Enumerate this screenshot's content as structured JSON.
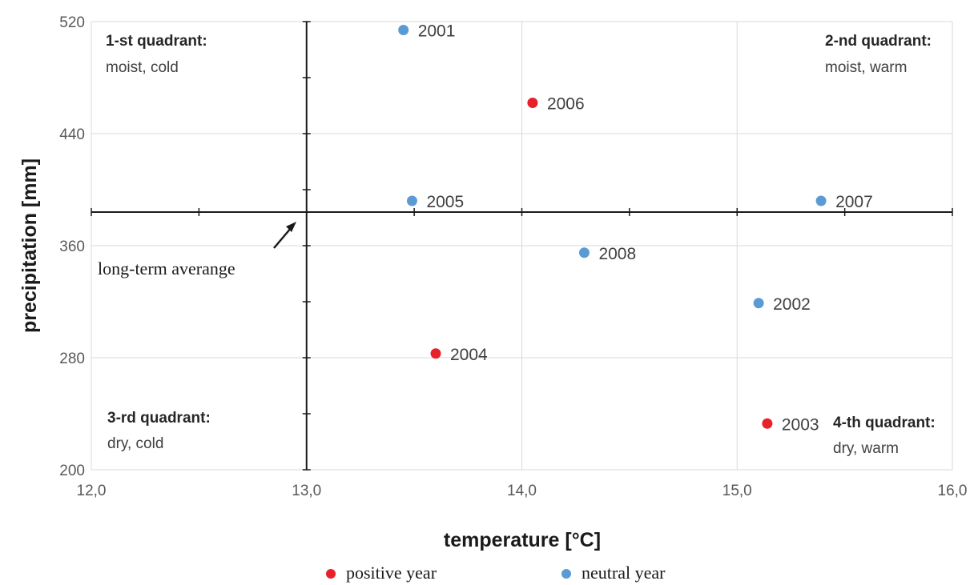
{
  "chart_data": {
    "type": "scatter",
    "xlabel": "temperature [°C]",
    "ylabel": "precipitation [mm]",
    "xlim": [
      12.0,
      16.0
    ],
    "ylim": [
      200,
      520
    ],
    "x_ticks": [
      "12,0",
      "13,0",
      "14,0",
      "15,0",
      "16,0"
    ],
    "y_ticks": [
      "200",
      "280",
      "360",
      "440",
      "520"
    ],
    "grid": true,
    "legend_placement": "bottom",
    "average": {
      "x": 13.0,
      "y": 384,
      "label": "long-term averange"
    },
    "series": [
      {
        "name": "positive year",
        "color": "#e8202a",
        "points": [
          {
            "x": 14.05,
            "y": 462,
            "label": "2006"
          },
          {
            "x": 13.6,
            "y": 283,
            "label": "2004"
          },
          {
            "x": 15.14,
            "y": 233,
            "label": "2003"
          }
        ]
      },
      {
        "name": "neutral year",
        "color": "#5b9bd5",
        "points": [
          {
            "x": 13.45,
            "y": 514,
            "label": "2001"
          },
          {
            "x": 13.49,
            "y": 392,
            "label": "2005"
          },
          {
            "x": 15.39,
            "y": 392,
            "label": "2007"
          },
          {
            "x": 14.29,
            "y": 355,
            "label": "2008"
          },
          {
            "x": 15.1,
            "y": 319,
            "label": "2002"
          }
        ]
      }
    ],
    "quadrants": [
      {
        "title": "1-st quadrant:",
        "desc": "moist, cold"
      },
      {
        "title": "2-nd quadrant:",
        "desc": "moist, warm"
      },
      {
        "title": "3-rd quadrant:",
        "desc": "dry, cold"
      },
      {
        "title": "4-th quadrant:",
        "desc": "dry, warm"
      }
    ]
  }
}
